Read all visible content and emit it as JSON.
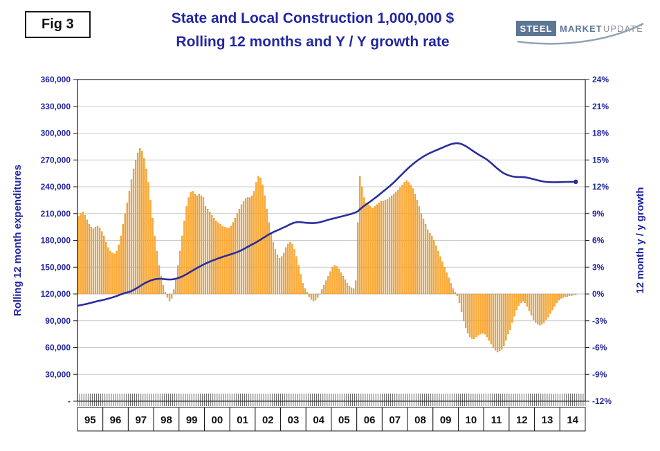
{
  "header": {
    "fig_label": "Fig 3",
    "title_line1": "State and Local Construction 1,000,000 $",
    "title_line2": "Rolling 12 months and Y / Y growth rate",
    "logo": {
      "steel": "STEEL",
      "market": "MARKET",
      "update": "UPDATE"
    }
  },
  "colors": {
    "navy": "#2227a0",
    "line": "#2a2d9c",
    "bar_fill": "#fcab3a",
    "bar_stroke": "#cf8a20",
    "grid": "#c9c9c9",
    "frame": "#1a1a1a"
  },
  "chart_data": {
    "type": "combo-bar-line",
    "title": "State and Local Construction 1,000,000 $ — Rolling 12 months and Y / Y growth rate",
    "x_start": "1995-01",
    "x_end": "2014-08",
    "x_frequency": "monthly",
    "x_axis_years": [
      "95",
      "96",
      "97",
      "98",
      "99",
      "00",
      "01",
      "02",
      "03",
      "04",
      "05",
      "06",
      "07",
      "08",
      "09",
      "10",
      "11",
      "12",
      "13",
      "14"
    ],
    "grid": "horizontal-only",
    "legend": "none",
    "left_axis": {
      "label": "Rolling 12 month expenditures",
      "min": 0,
      "max": 360000,
      "tick_step": 30000,
      "tick_labels": [
        "360,000",
        "330,000",
        "300,000",
        "270,000",
        "240,000",
        "210,000",
        "180,000",
        "150,000",
        "120,000",
        "90,000",
        "60,000",
        "30,000",
        "-"
      ]
    },
    "right_axis": {
      "label": "12 month y / y growth",
      "min": -12,
      "max": 24,
      "tick_step": 3,
      "tick_labels": [
        "24%",
        "21%",
        "18%",
        "15%",
        "12%",
        "9%",
        "6%",
        "3%",
        "0%",
        "-3%",
        "-6%",
        "-9%",
        "-12%"
      ]
    },
    "series": [
      {
        "name": "Rolling 12 month expenditures",
        "type": "line",
        "axis": "left",
        "color": "#2a2d9c",
        "values": [
          107000,
          107500,
          108000,
          108500,
          109000,
          109600,
          110200,
          110800,
          111400,
          112000,
          112500,
          113000,
          113500,
          114100,
          114700,
          115400,
          116100,
          116900,
          117700,
          118600,
          119500,
          120400,
          121200,
          121700,
          122300,
          123300,
          124500,
          125800,
          127200,
          128700,
          130200,
          131600,
          132900,
          134000,
          135000,
          135800,
          136400,
          136800,
          137000,
          137000,
          136800,
          136500,
          136300,
          136200,
          136300,
          136600,
          137100,
          137800,
          138600,
          139600,
          140800,
          142100,
          143500,
          144900,
          146300,
          147700,
          149100,
          150400,
          151700,
          152900,
          154000,
          155100,
          156100,
          157100,
          158000,
          158900,
          159800,
          160600,
          161400,
          162200,
          163000,
          163700,
          164400,
          165200,
          166000,
          166900,
          167900,
          169000,
          170200,
          171500,
          172800,
          174100,
          175400,
          176600,
          177900,
          179300,
          180800,
          182300,
          183800,
          185300,
          186700,
          188000,
          189200,
          190300,
          191300,
          192200,
          193500,
          194500,
          195600,
          196800,
          198000,
          199000,
          199800,
          200300,
          200500,
          200400,
          200100,
          199800,
          199600,
          199400,
          199300,
          199300,
          199500,
          199800,
          200300,
          200900,
          201600,
          202300,
          203000,
          203600,
          204200,
          204800,
          205400,
          206000,
          206600,
          207200,
          207800,
          208400,
          209000,
          209700,
          210500,
          211400,
          212500,
          214800,
          216800,
          218600,
          220300,
          222000,
          223700,
          225400,
          227200,
          229100,
          231000,
          232900,
          234800,
          236700,
          238600,
          240600,
          242700,
          244900,
          247200,
          249500,
          251900,
          254300,
          256700,
          259000,
          261200,
          263300,
          265300,
          267200,
          269000,
          270700,
          272300,
          273800,
          275200,
          276500,
          277700,
          278800,
          279800,
          280800,
          281800,
          282800,
          283800,
          284800,
          285800,
          286800,
          287600,
          288200,
          288600,
          288800,
          288500,
          287800,
          286800,
          285500,
          284000,
          282400,
          280800,
          279200,
          277600,
          276100,
          274700,
          273400,
          272000,
          270400,
          268600,
          266600,
          264500,
          262400,
          260300,
          258400,
          256600,
          255100,
          253900,
          253000,
          252200,
          251600,
          251200,
          251000,
          250900,
          250900,
          250800,
          250600,
          250200,
          249700,
          249100,
          248500,
          247900,
          247300,
          246700,
          246200,
          245800,
          245500,
          245300,
          245200,
          245100,
          245100,
          245100,
          245200,
          245300,
          245300,
          245400,
          245400,
          245500,
          245500,
          245600,
          245600
        ]
      },
      {
        "name": "12 month y / y growth (%)",
        "type": "bar",
        "axis": "right",
        "color": "#fcab3a",
        "baseline": 0,
        "values": [
          8.7,
          9.0,
          9.2,
          8.8,
          8.3,
          7.8,
          7.5,
          7.3,
          7.5,
          7.6,
          7.4,
          7.0,
          6.5,
          5.8,
          5.2,
          4.8,
          4.6,
          4.5,
          4.8,
          5.5,
          6.5,
          7.8,
          9.0,
          10.2,
          11.5,
          12.8,
          14.0,
          15.0,
          15.8,
          16.3,
          16.0,
          15.2,
          14.0,
          12.5,
          10.5,
          8.5,
          6.5,
          4.8,
          3.2,
          2.0,
          1.0,
          0.2,
          -0.4,
          -0.8,
          -0.5,
          0.5,
          1.8,
          3.2,
          4.8,
          6.5,
          8.2,
          9.8,
          10.8,
          11.4,
          11.5,
          11.2,
          11.0,
          11.2,
          11.0,
          10.8,
          9.8,
          9.5,
          9.2,
          8.8,
          8.5,
          8.2,
          8.0,
          7.8,
          7.6,
          7.5,
          7.4,
          7.4,
          7.6,
          8.0,
          8.5,
          9.0,
          9.5,
          10.0,
          10.4,
          10.7,
          10.8,
          10.8,
          11.0,
          11.5,
          12.5,
          13.2,
          13.0,
          12.2,
          11.0,
          9.5,
          8.0,
          6.8,
          5.8,
          5.0,
          4.4,
          4.0,
          4.2,
          4.6,
          5.2,
          5.6,
          5.8,
          5.6,
          5.0,
          4.2,
          3.2,
          2.2,
          1.2,
          0.6,
          0.2,
          -0.3,
          -0.6,
          -0.8,
          -0.7,
          -0.4,
          0.0,
          0.5,
          1.0,
          1.5,
          2.0,
          2.5,
          3.0,
          3.2,
          3.1,
          2.8,
          2.4,
          2.0,
          1.6,
          1.2,
          0.9,
          0.7,
          0.6,
          1.5,
          8.0,
          13.2,
          12.0,
          10.8,
          10.2,
          10.0,
          9.8,
          9.6,
          9.8,
          10.0,
          10.2,
          10.4,
          10.4,
          10.5,
          10.6,
          10.8,
          11.0,
          11.2,
          11.4,
          11.6,
          11.9,
          12.2,
          12.5,
          12.7,
          12.5,
          12.2,
          11.8,
          11.2,
          10.5,
          9.8,
          9.0,
          8.4,
          7.8,
          7.2,
          6.8,
          6.5,
          6.0,
          5.4,
          4.8,
          4.2,
          3.6,
          3.0,
          2.4,
          1.8,
          1.2,
          0.6,
          0.2,
          -0.2,
          -1.0,
          -2.0,
          -3.0,
          -3.8,
          -4.4,
          -4.8,
          -5.0,
          -5.0,
          -4.8,
          -4.6,
          -4.5,
          -4.4,
          -4.5,
          -4.8,
          -5.2,
          -5.6,
          -6.0,
          -6.3,
          -6.5,
          -6.4,
          -6.2,
          -5.8,
          -5.2,
          -4.5,
          -4.0,
          -3.2,
          -2.5,
          -1.8,
          -1.3,
          -1.0,
          -0.8,
          -1.0,
          -1.4,
          -1.9,
          -2.4,
          -2.9,
          -3.2,
          -3.4,
          -3.5,
          -3.4,
          -3.2,
          -2.9,
          -2.6,
          -2.2,
          -1.8,
          -1.4,
          -1.0,
          -0.7,
          -0.5,
          -0.4,
          -0.3,
          -0.3,
          -0.2,
          -0.2,
          -0.1,
          -0.1
        ]
      }
    ]
  }
}
